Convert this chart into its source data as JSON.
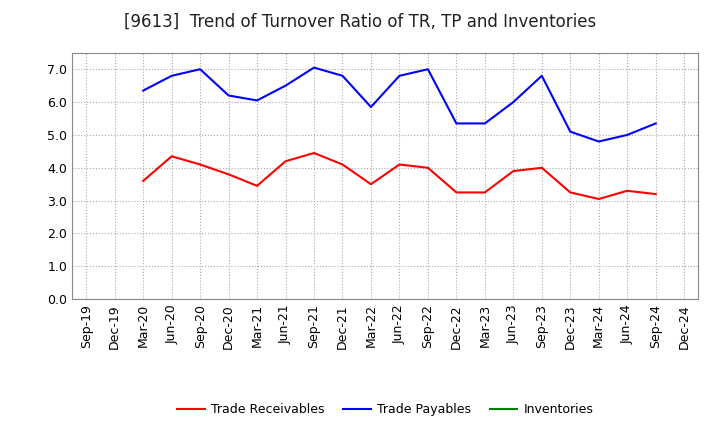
{
  "title": "[9613]  Trend of Turnover Ratio of TR, TP and Inventories",
  "x_labels": [
    "Sep-19",
    "Dec-19",
    "Mar-20",
    "Jun-20",
    "Sep-20",
    "Dec-20",
    "Mar-21",
    "Jun-21",
    "Sep-21",
    "Dec-21",
    "Mar-22",
    "Jun-22",
    "Sep-22",
    "Dec-22",
    "Mar-23",
    "Jun-23",
    "Sep-23",
    "Dec-23",
    "Mar-24",
    "Jun-24",
    "Sep-24",
    "Dec-24"
  ],
  "trade_receivables": [
    null,
    null,
    3.6,
    4.35,
    4.1,
    3.8,
    3.45,
    4.2,
    4.45,
    4.1,
    3.5,
    4.1,
    4.0,
    3.25,
    3.25,
    3.9,
    4.0,
    3.25,
    3.05,
    3.3,
    3.2,
    null
  ],
  "trade_payables": [
    null,
    null,
    6.35,
    6.8,
    7.0,
    6.2,
    6.05,
    6.5,
    7.05,
    6.8,
    5.85,
    6.8,
    7.0,
    5.35,
    5.35,
    6.0,
    6.8,
    5.1,
    4.8,
    5.0,
    5.35,
    null
  ],
  "inventories": [
    null,
    null,
    null,
    null,
    null,
    null,
    null,
    null,
    null,
    null,
    null,
    null,
    null,
    null,
    null,
    null,
    null,
    null,
    null,
    null,
    null,
    null
  ],
  "tr_color": "#ff0000",
  "tp_color": "#0000ff",
  "inv_color": "#008000",
  "ylim": [
    0.0,
    7.5
  ],
  "yticks": [
    0.0,
    1.0,
    2.0,
    3.0,
    4.0,
    5.0,
    6.0,
    7.0
  ],
  "background_color": "#ffffff",
  "grid_color": "#aaaaaa",
  "title_fontsize": 12,
  "legend_fontsize": 9,
  "tick_fontsize": 9,
  "linewidth": 1.5
}
